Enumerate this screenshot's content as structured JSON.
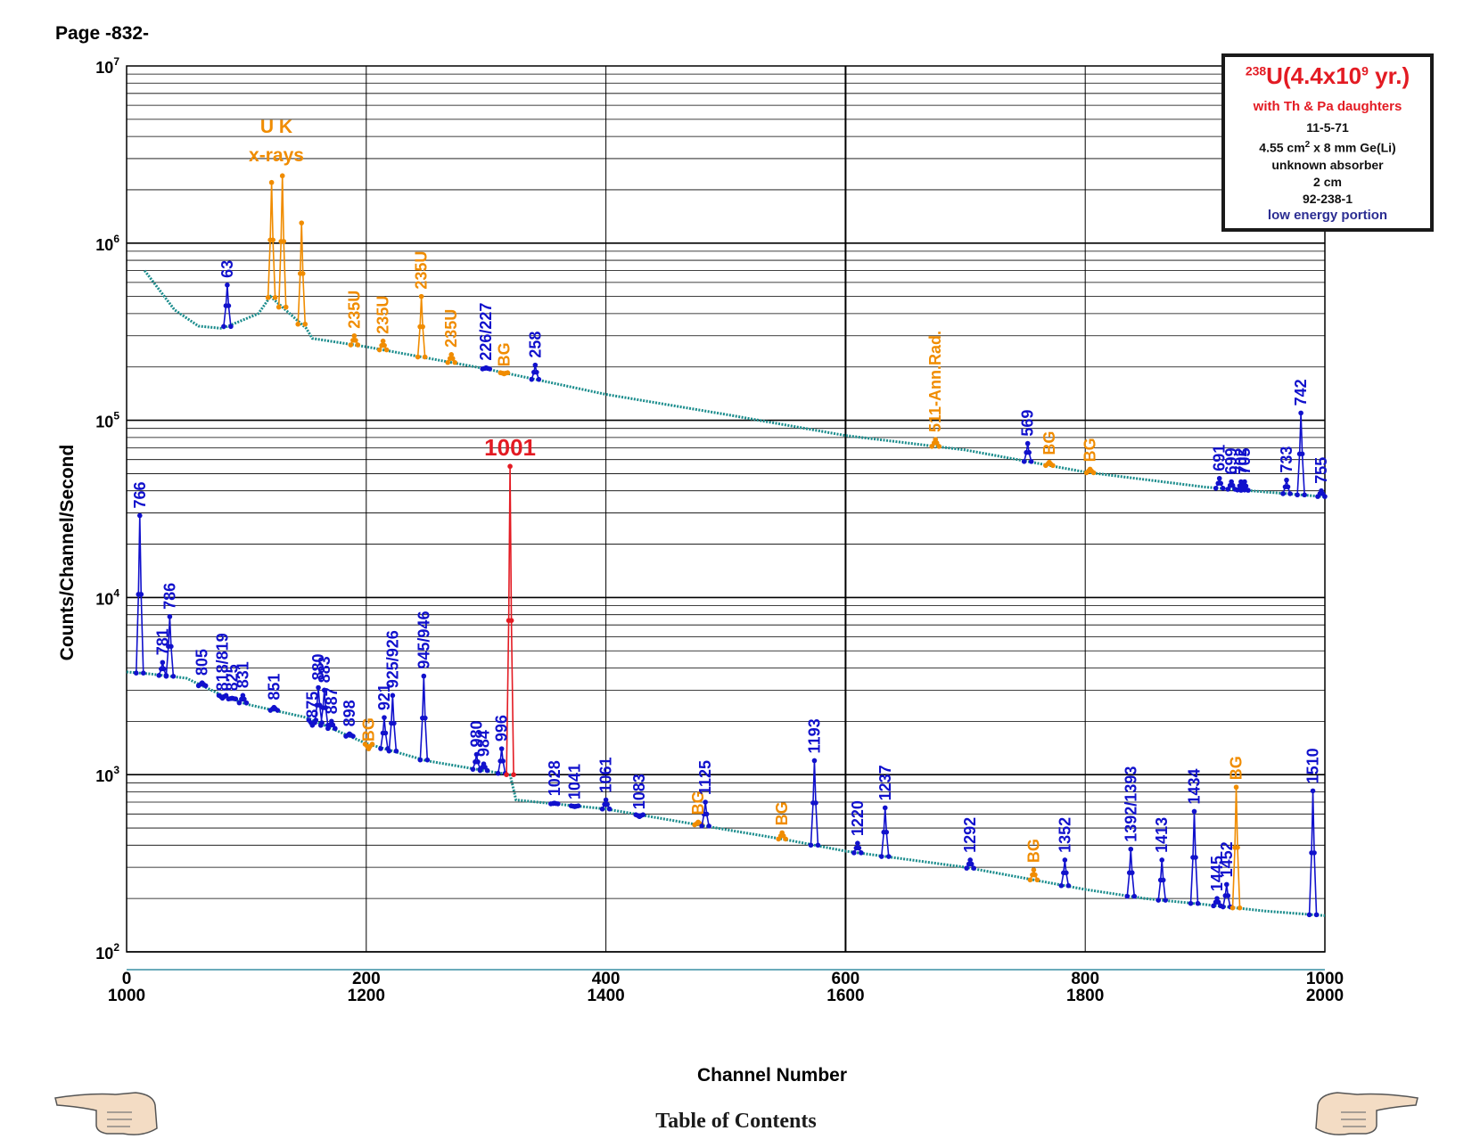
{
  "page": {
    "label": "Page -832-",
    "footer_link": "Table of Contents"
  },
  "legend": {
    "isotope_sup": "238",
    "isotope_text": "U(4.4x10",
    "isotope_exp": "9",
    "isotope_tail": " yr.)",
    "daughters": "with Th & Pa daughters",
    "date": "11-5-71",
    "detector_pre": "4.55 cm",
    "detector_sup": "2",
    "detector_post": " x 8 mm Ge(Li)",
    "absorber": "unknown absorber",
    "distance": "2 cm",
    "code": "92-238-1",
    "portion": "low energy portion"
  },
  "colors": {
    "spectrum": "#1a8c8c",
    "peak": "#1111cc",
    "orange": "#f08c00",
    "red": "#e31b23",
    "grid": "#000000"
  },
  "chart_data": {
    "type": "line",
    "scale": "log",
    "ylabel": "Counts/Channel/Second",
    "xlabel": "Channel Number",
    "ylim": [
      100,
      10000000
    ],
    "y_ticks": [
      {
        "base": "10",
        "exp": "2",
        "value": 100
      },
      {
        "base": "10",
        "exp": "3",
        "value": 1000
      },
      {
        "base": "10",
        "exp": "4",
        "value": 10000
      },
      {
        "base": "10",
        "exp": "5",
        "value": 100000
      },
      {
        "base": "10",
        "exp": "6",
        "value": 1000000
      },
      {
        "base": "10",
        "exp": "7",
        "value": 10000000
      }
    ],
    "x_top_ticks": [
      "0",
      "200",
      "400",
      "600",
      "800",
      "1000"
    ],
    "x_bottom_ticks": [
      "1000",
      "1200",
      "1400",
      "1600",
      "1800",
      "2000"
    ],
    "xlim_upper": [
      0,
      1000
    ],
    "xlim_lower": [
      1000,
      2000
    ],
    "upper_baseline": [
      [
        15,
        700000
      ],
      [
        40,
        420000
      ],
      [
        60,
        340000
      ],
      [
        80,
        330000
      ],
      [
        110,
        400000
      ],
      [
        120,
        500000
      ],
      [
        150,
        330000
      ],
      [
        155,
        290000
      ],
      [
        200,
        260000
      ],
      [
        300,
        195000
      ],
      [
        400,
        140000
      ],
      [
        500,
        108000
      ],
      [
        600,
        82000
      ],
      [
        700,
        68000
      ],
      [
        800,
        51000
      ],
      [
        900,
        42000
      ],
      [
        1000,
        37000
      ]
    ],
    "lower_baseline": [
      [
        1000,
        3800
      ],
      [
        1020,
        3700
      ],
      [
        1050,
        3500
      ],
      [
        1080,
        2800
      ],
      [
        1100,
        2500
      ],
      [
        1150,
        2100
      ],
      [
        1200,
        1500
      ],
      [
        1250,
        1200
      ],
      [
        1300,
        1050
      ],
      [
        1320,
        1000
      ],
      [
        1325,
        720
      ],
      [
        1400,
        640
      ],
      [
        1500,
        490
      ],
      [
        1550,
        430
      ],
      [
        1600,
        370
      ],
      [
        1700,
        300
      ],
      [
        1750,
        260
      ],
      [
        1800,
        225
      ],
      [
        1850,
        200
      ],
      [
        1900,
        185
      ],
      [
        1950,
        170
      ],
      [
        2000,
        160
      ]
    ],
    "upper_peaks": [
      {
        "x": 84,
        "y": 580000,
        "label": "63",
        "color": "blue"
      },
      {
        "x": 121,
        "y": 2200000,
        "label": "",
        "color": "orange"
      },
      {
        "x": 130,
        "y": 2400000,
        "label": "",
        "color": "orange"
      },
      {
        "x": 146,
        "y": 1300000,
        "label": "",
        "color": "orange"
      },
      {
        "x": 190,
        "y": 300000,
        "label": "235U",
        "color": "orange"
      },
      {
        "x": 214,
        "y": 280000,
        "label": "235U",
        "color": "orange"
      },
      {
        "x": 246,
        "y": 500000,
        "label": "235U",
        "color": "orange"
      },
      {
        "x": 271,
        "y": 235000,
        "label": "235U",
        "color": "orange"
      },
      {
        "x": 300,
        "y": 198000,
        "label": "226/227",
        "color": "blue"
      },
      {
        "x": 315,
        "y": 183000,
        "label": "BG",
        "color": "orange"
      },
      {
        "x": 341,
        "y": 205000,
        "label": "258",
        "color": "blue"
      },
      {
        "x": 675,
        "y": 78000,
        "label": "511-Ann.Rad.",
        "color": "orange"
      },
      {
        "x": 752,
        "y": 74000,
        "label": "569",
        "color": "blue"
      },
      {
        "x": 770,
        "y": 58000,
        "label": "BG",
        "color": "orange"
      },
      {
        "x": 804,
        "y": 53000,
        "label": "BG",
        "color": "orange"
      },
      {
        "x": 912,
        "y": 47000,
        "label": "691",
        "color": "blue"
      },
      {
        "x": 922,
        "y": 45000,
        "label": "699",
        "color": "blue"
      },
      {
        "x": 930,
        "y": 45000,
        "label": "702",
        "color": "blue"
      },
      {
        "x": 933,
        "y": 45000,
        "label": "705",
        "color": "blue"
      },
      {
        "x": 968,
        "y": 46000,
        "label": "733",
        "color": "blue"
      },
      {
        "x": 980,
        "y": 110000,
        "label": "742",
        "color": "blue"
      },
      {
        "x": 997,
        "y": 40000,
        "label": "755",
        "color": "blue"
      }
    ],
    "lower_peaks": [
      {
        "x": 1011,
        "y": 29000,
        "label": "766",
        "color": "blue"
      },
      {
        "x": 1030,
        "y": 4300,
        "label": "781",
        "color": "blue"
      },
      {
        "x": 1036,
        "y": 7800,
        "label": "786",
        "color": "blue"
      },
      {
        "x": 1063,
        "y": 3300,
        "label": "805",
        "color": "blue"
      },
      {
        "x": 1080,
        "y": 2700,
        "label": "818/819",
        "color": "blue"
      },
      {
        "x": 1088,
        "y": 2700,
        "label": "825",
        "color": "blue"
      },
      {
        "x": 1097,
        "y": 2800,
        "label": "831",
        "color": "blue"
      },
      {
        "x": 1123,
        "y": 2400,
        "label": "851",
        "color": "blue"
      },
      {
        "x": 1155,
        "y": 1900,
        "label": "875",
        "color": "blue"
      },
      {
        "x": 1160,
        "y": 3100,
        "label": "880",
        "color": "blue"
      },
      {
        "x": 1165,
        "y": 3000,
        "label": "883",
        "color": "blue"
      },
      {
        "x": 1171,
        "y": 2000,
        "label": "887",
        "color": "blue"
      },
      {
        "x": 1186,
        "y": 1700,
        "label": "898",
        "color": "blue"
      },
      {
        "x": 1202,
        "y": 1400,
        "label": "BG",
        "color": "orange"
      },
      {
        "x": 1215,
        "y": 2100,
        "label": "921",
        "color": "blue"
      },
      {
        "x": 1222,
        "y": 2800,
        "label": "925/926",
        "color": "blue"
      },
      {
        "x": 1248,
        "y": 3600,
        "label": "945/946",
        "color": "blue"
      },
      {
        "x": 1292,
        "y": 1300,
        "label": "980",
        "color": "blue"
      },
      {
        "x": 1298,
        "y": 1150,
        "label": "984",
        "color": "blue"
      },
      {
        "x": 1313,
        "y": 1400,
        "label": "996",
        "color": "blue"
      },
      {
        "x": 1320,
        "y": 55000,
        "label": "1001",
        "color": "red"
      },
      {
        "x": 1357,
        "y": 690,
        "label": "1028",
        "color": "blue"
      },
      {
        "x": 1374,
        "y": 660,
        "label": "1041",
        "color": "blue"
      },
      {
        "x": 1400,
        "y": 720,
        "label": "1061",
        "color": "blue"
      },
      {
        "x": 1428,
        "y": 580,
        "label": "1083",
        "color": "blue"
      },
      {
        "x": 1477,
        "y": 540,
        "label": "BG",
        "color": "orange"
      },
      {
        "x": 1483,
        "y": 700,
        "label": "1125",
        "color": "blue"
      },
      {
        "x": 1547,
        "y": 470,
        "label": "BG",
        "color": "orange"
      },
      {
        "x": 1574,
        "y": 1200,
        "label": "1193",
        "color": "blue"
      },
      {
        "x": 1610,
        "y": 410,
        "label": "1220",
        "color": "blue"
      },
      {
        "x": 1633,
        "y": 650,
        "label": "1237",
        "color": "blue"
      },
      {
        "x": 1704,
        "y": 330,
        "label": "1292",
        "color": "blue"
      },
      {
        "x": 1757,
        "y": 290,
        "label": "BG",
        "color": "orange"
      },
      {
        "x": 1783,
        "y": 330,
        "label": "1352",
        "color": "blue"
      },
      {
        "x": 1838,
        "y": 380,
        "label": "1392/1393",
        "color": "blue"
      },
      {
        "x": 1864,
        "y": 330,
        "label": "1413",
        "color": "blue"
      },
      {
        "x": 1891,
        "y": 620,
        "label": "1434",
        "color": "blue"
      },
      {
        "x": 1910,
        "y": 200,
        "label": "1445",
        "color": "blue"
      },
      {
        "x": 1918,
        "y": 240,
        "label": "1452",
        "color": "blue"
      },
      {
        "x": 1926,
        "y": 850,
        "label": "BG",
        "color": "orange"
      },
      {
        "x": 1990,
        "y": 810,
        "label": "1510",
        "color": "blue"
      }
    ],
    "annotations": [
      {
        "text": "U K",
        "x": 125,
        "y": 4200000,
        "color": "orange"
      },
      {
        "text": "x-rays",
        "x": 125,
        "y": 2900000,
        "color": "orange"
      }
    ]
  }
}
